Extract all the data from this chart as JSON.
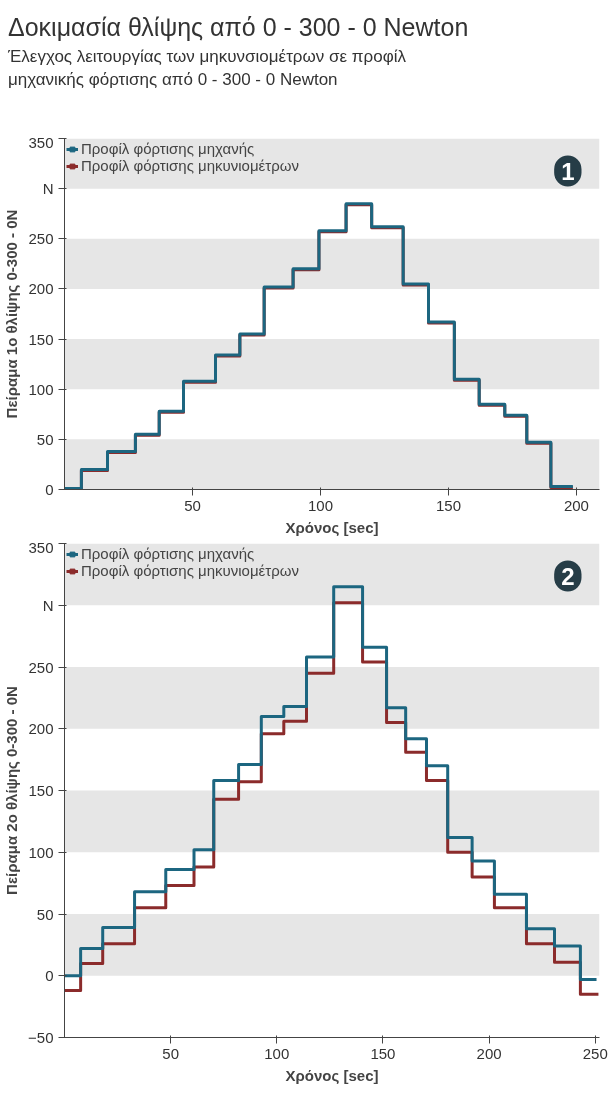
{
  "chart_data": [
    {
      "type": "step",
      "title": "Δοκιμασία θλίψης από 0 - 300 - 0 Newton",
      "subtitle": "Έλεγχος λειτουργίας των μηκυνσιομέτρων σε προφίλ μηχανικής φόρτισης από 0 - 300 - 0 Newton",
      "xlabel": "Χρόνος [sec]",
      "ylabel": "Πείραμα 1ο θλίψης 0-300 - 0N",
      "xlim": [
        0,
        209
      ],
      "xticks": [
        50,
        100,
        150,
        200
      ],
      "ylim": [
        0,
        350
      ],
      "yticks": [
        0,
        50,
        100,
        150,
        200,
        250,
        {
          "value": 300,
          "label": "N"
        },
        350
      ],
      "grid": false,
      "legend": "top left",
      "annotations": [
        "1"
      ],
      "bands": [
        {
          "axis": "y",
          "from": 0,
          "to": 50,
          "label": null,
          "color": "#e6e6e6"
        },
        {
          "axis": "y",
          "from": 100,
          "to": 150,
          "label": null,
          "color": "#e6e6e6"
        },
        {
          "axis": "y",
          "from": 200,
          "to": 250,
          "label": null,
          "color": "#e6e6e6"
        },
        {
          "axis": "y",
          "from": 300,
          "to": 350,
          "label": null,
          "color": "#e6e6e6"
        }
      ],
      "series": [
        {
          "name": "Προφίλ φόρτισης μηκυνιομέτρων",
          "color": "#8b2b2b",
          "x": [
            0,
            6.6,
            16.8,
            27.7,
            37,
            46.5,
            59,
            68.5,
            78,
            89.3,
            99.4,
            110,
            120,
            132.3,
            142.2,
            152.3,
            162,
            172,
            180.6,
            190,
            198.6
          ],
          "values": [
            0,
            19,
            37,
            54,
            77,
            107,
            133,
            154,
            201,
            219,
            257,
            284,
            261,
            204,
            166,
            109,
            84,
            73,
            46,
            2,
            2
          ]
        },
        {
          "name": "Προφίλ φόρτισης μηχανής",
          "color": "#1c6680",
          "x": [
            0,
            6.6,
            16.8,
            27.7,
            37,
            46.5,
            59,
            68.5,
            78,
            89.3,
            99.4,
            110,
            120,
            132.3,
            142.2,
            152.3,
            162,
            172,
            180.6,
            190,
            198.6
          ],
          "values": [
            1,
            20,
            38,
            55,
            78,
            108,
            134,
            155,
            202,
            220,
            258,
            285,
            262,
            205,
            167,
            110,
            85,
            74,
            47,
            3,
            3
          ]
        }
      ]
    },
    {
      "type": "step",
      "xlabel": "Χρόνος [sec]",
      "ylabel": "Πείραμα 2ο θλίψης 0-300 - 0N",
      "xlim": [
        0,
        252
      ],
      "xticks": [
        50,
        100,
        150,
        200,
        250
      ],
      "ylim": [
        -50,
        350
      ],
      "yticks": [
        -50,
        0,
        50,
        100,
        150,
        200,
        250,
        {
          "value": 300,
          "label": "N"
        },
        350
      ],
      "grid": false,
      "legend": "top left",
      "annotations": [
        "2"
      ],
      "bands": [
        {
          "axis": "y",
          "from": 0,
          "to": 50,
          "label": null,
          "color": "#e6e6e6"
        },
        {
          "axis": "y",
          "from": 100,
          "to": 150,
          "label": null,
          "color": "#e6e6e6"
        },
        {
          "axis": "y",
          "from": 200,
          "to": 250,
          "label": null,
          "color": "#e6e6e6"
        },
        {
          "axis": "y",
          "from": 300,
          "to": 350,
          "label": null,
          "color": "#e6e6e6"
        }
      ],
      "series": [
        {
          "name": "Προφίλ φόρτισης μηκυνιομέτρων",
          "color": "#8b2b2b",
          "x": [
            0,
            7.6,
            18,
            33,
            47.7,
            61,
            70.3,
            82,
            92.7,
            103.3,
            114,
            126.8,
            140.4,
            151.7,
            160.7,
            170.5,
            180.5,
            192,
            202.5,
            217.6,
            230.8,
            243,
            251.5
          ],
          "values": [
            -12,
            10,
            26,
            55,
            73,
            88,
            143,
            157,
            196,
            206,
            245,
            302,
            254,
            205,
            181,
            158,
            100,
            80,
            55,
            26,
            11,
            -15,
            -15
          ]
        },
        {
          "name": "Προφίλ φόρτισης μηχανής",
          "color": "#1c6680",
          "x": [
            0,
            7.6,
            18,
            33,
            47.7,
            61,
            70.3,
            82,
            92.7,
            103.3,
            114,
            126.8,
            140.4,
            151.7,
            160.7,
            170.5,
            180.5,
            192,
            202.5,
            217.6,
            230.8,
            243,
            250.6
          ],
          "values": [
            0,
            22,
            39,
            68,
            86,
            102,
            158,
            171,
            210,
            218,
            258,
            315,
            266,
            217,
            192,
            170,
            112,
            93,
            66,
            38,
            24,
            -3,
            -3
          ]
        }
      ]
    }
  ]
}
